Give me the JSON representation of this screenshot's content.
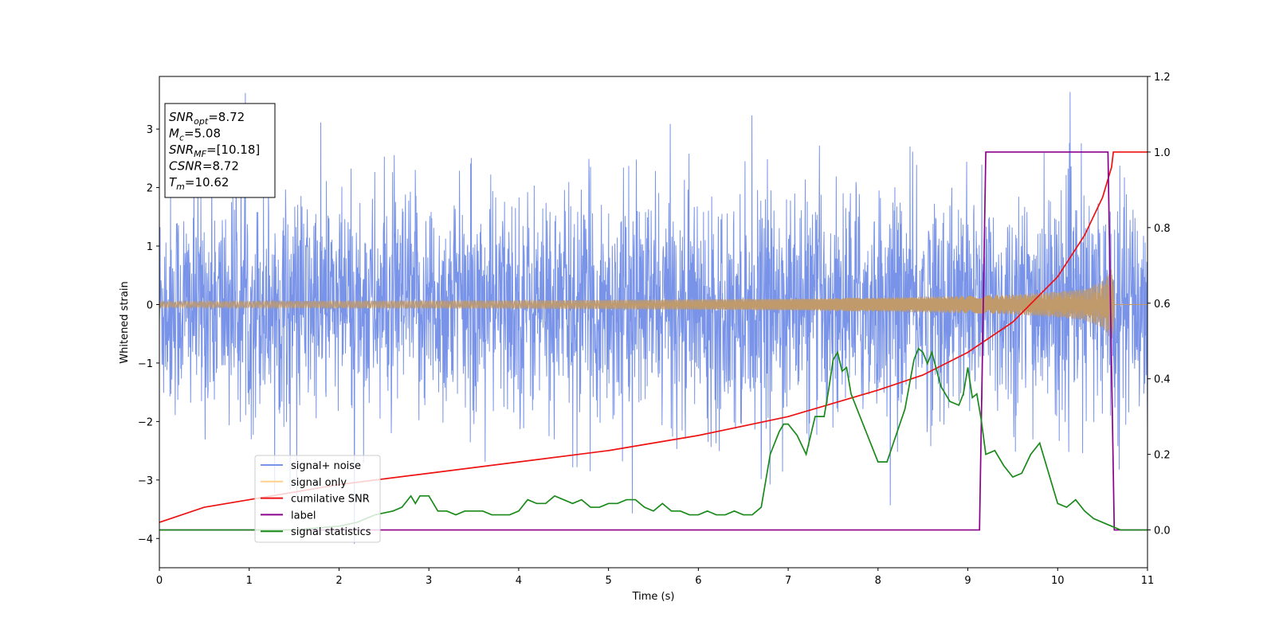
{
  "chart_data": {
    "type": "line",
    "xlabel": "Time (s)",
    "ylabel": "Whitened strain",
    "xlim": [
      0,
      11
    ],
    "ylim_left": [
      -4.5,
      3.9
    ],
    "ylim_right": [
      -0.1,
      1.2
    ],
    "x_ticks": [
      "0",
      "1",
      "2",
      "3",
      "4",
      "5",
      "6",
      "7",
      "8",
      "9",
      "10",
      "11"
    ],
    "y_ticks_left": [
      "3",
      "2",
      "1",
      "0",
      "−1",
      "−2",
      "−3",
      "−4"
    ],
    "y_ticks_right": [
      "1.2",
      "1.0",
      "0.8",
      "0.6",
      "0.4",
      "0.2",
      "0.0"
    ],
    "legend_position": "lower-left",
    "info_box": {
      "lines": [
        {
          "sym": "SNR",
          "sub": "opt",
          "value": "=8.72"
        },
        {
          "sym": "M",
          "sub": "c",
          "value": "=5.08"
        },
        {
          "sym": "SNR",
          "sub": "MF",
          "value": "=[10.18]"
        },
        {
          "sym": "CSNR",
          "sub": "",
          "value": "=8.72"
        },
        {
          "sym": "T",
          "sub": "m",
          "value": "=10.62"
        }
      ]
    },
    "series": [
      {
        "name": "signal+ noise",
        "axis": "left",
        "color": "#7893e8",
        "description_values": {
          "noise_sd": 0.95,
          "merger_time": 10.62
        }
      },
      {
        "name": "signal only",
        "axis": "left",
        "color": "#c19a6b",
        "envelope": {
          "t": [
            0,
            2,
            4,
            6,
            7,
            8,
            9,
            9.5,
            10,
            10.3,
            10.5,
            10.6,
            10.62,
            10.63,
            11
          ],
          "amp": [
            0.05,
            0.06,
            0.07,
            0.09,
            0.1,
            0.12,
            0.15,
            0.17,
            0.22,
            0.27,
            0.4,
            0.6,
            0.7,
            0,
            0
          ]
        }
      },
      {
        "name": "cumilative SNR",
        "axis": "right",
        "color": "#ee1111",
        "x": [
          0,
          0.5,
          1,
          2,
          3,
          4,
          5,
          6,
          7,
          8,
          8.5,
          9,
          9.5,
          10,
          10.3,
          10.5,
          10.6,
          10.62,
          11
        ],
        "y": [
          0.02,
          0.06,
          0.08,
          0.12,
          0.15,
          0.18,
          0.21,
          0.25,
          0.3,
          0.37,
          0.41,
          0.47,
          0.55,
          0.67,
          0.78,
          0.88,
          0.96,
          1.0,
          1.0
        ]
      },
      {
        "name": "label",
        "axis": "right",
        "color": "#8b008b",
        "x": [
          0,
          9.13,
          9.2,
          10.56,
          10.63,
          11
        ],
        "y": [
          0,
          0,
          1,
          1,
          0,
          0
        ]
      },
      {
        "name": "signal statistics",
        "axis": "right",
        "color": "#1a8a1a",
        "x": [
          0,
          0.5,
          1,
          1.5,
          2,
          2.2,
          2.4,
          2.6,
          2.7,
          2.8,
          2.85,
          2.9,
          3.0,
          3.1,
          3.2,
          3.3,
          3.4,
          3.5,
          3.6,
          3.7,
          3.8,
          3.9,
          4.0,
          4.1,
          4.2,
          4.3,
          4.4,
          4.5,
          4.6,
          4.7,
          4.8,
          4.9,
          5.0,
          5.1,
          5.2,
          5.3,
          5.4,
          5.5,
          5.6,
          5.7,
          5.8,
          5.9,
          6.0,
          6.1,
          6.2,
          6.3,
          6.4,
          6.5,
          6.6,
          6.7,
          6.8,
          6.9,
          6.95,
          7.0,
          7.1,
          7.2,
          7.3,
          7.4,
          7.45,
          7.5,
          7.55,
          7.6,
          7.65,
          7.7,
          7.8,
          7.9,
          8.0,
          8.1,
          8.2,
          8.3,
          8.4,
          8.45,
          8.5,
          8.55,
          8.6,
          8.7,
          8.8,
          8.9,
          8.95,
          9.0,
          9.05,
          9.1,
          9.15,
          9.2,
          9.3,
          9.4,
          9.5,
          9.6,
          9.7,
          9.8,
          9.9,
          10.0,
          10.1,
          10.2,
          10.3,
          10.4,
          10.5,
          10.6,
          10.7,
          11
        ],
        "y": [
          0,
          0,
          0,
          0,
          0.01,
          0.02,
          0.04,
          0.05,
          0.06,
          0.09,
          0.07,
          0.09,
          0.09,
          0.05,
          0.05,
          0.04,
          0.05,
          0.05,
          0.05,
          0.04,
          0.04,
          0.04,
          0.05,
          0.08,
          0.07,
          0.07,
          0.09,
          0.08,
          0.07,
          0.08,
          0.06,
          0.06,
          0.07,
          0.07,
          0.08,
          0.08,
          0.06,
          0.05,
          0.07,
          0.05,
          0.05,
          0.04,
          0.04,
          0.05,
          0.04,
          0.04,
          0.05,
          0.04,
          0.04,
          0.06,
          0.2,
          0.26,
          0.28,
          0.28,
          0.25,
          0.2,
          0.3,
          0.3,
          0.37,
          0.45,
          0.47,
          0.42,
          0.43,
          0.36,
          0.3,
          0.24,
          0.18,
          0.18,
          0.25,
          0.32,
          0.45,
          0.48,
          0.47,
          0.44,
          0.47,
          0.38,
          0.34,
          0.33,
          0.36,
          0.43,
          0.35,
          0.36,
          0.29,
          0.2,
          0.21,
          0.17,
          0.14,
          0.15,
          0.2,
          0.23,
          0.15,
          0.07,
          0.06,
          0.08,
          0.05,
          0.03,
          0.02,
          0.01,
          0.0,
          0.0
        ]
      }
    ]
  }
}
